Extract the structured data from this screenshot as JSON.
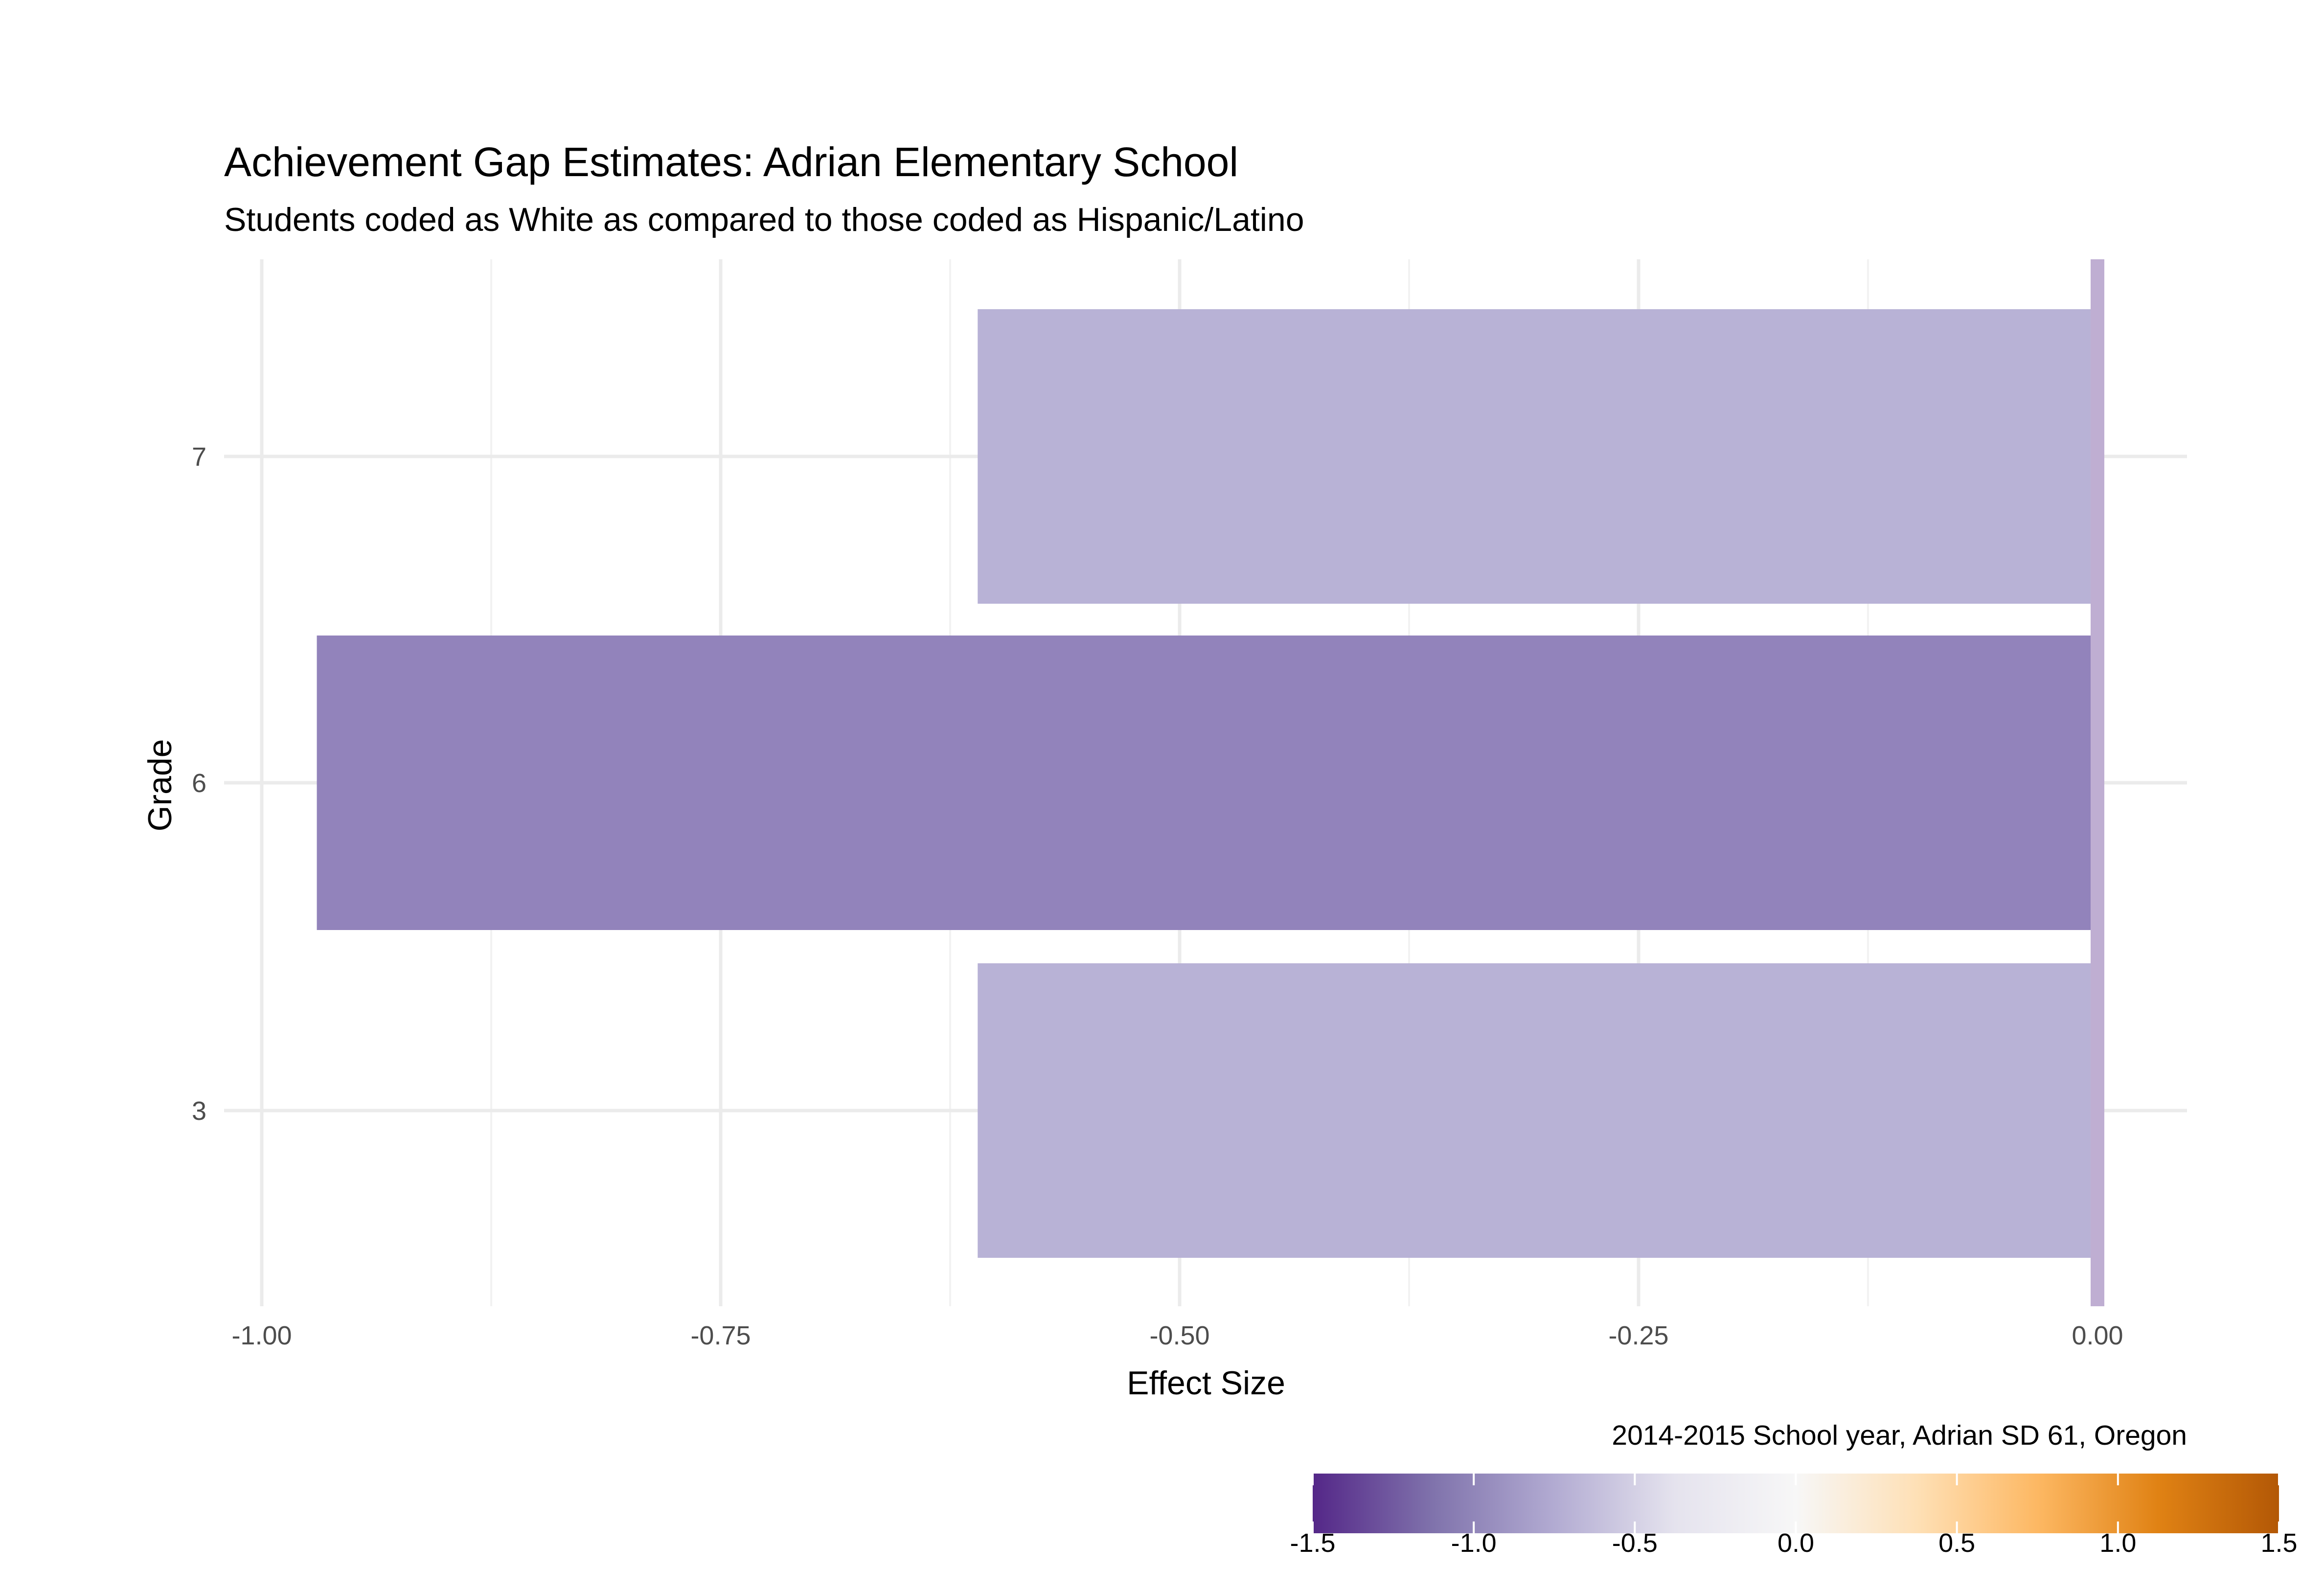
{
  "chart_data": {
    "type": "bar",
    "orientation": "horizontal",
    "title": "Achievement Gap Estimates: Adrian Elementary School",
    "subtitle": "Students coded as White as compared to those coded as Hispanic/Latino",
    "xlabel": "Effect Size",
    "ylabel": "Grade",
    "caption": "2014-2015 School year, Adrian SD 61, Oregon",
    "categories": [
      "3",
      "6",
      "7"
    ],
    "values": [
      -0.61,
      -0.97,
      -0.61
    ],
    "xlim": [
      -1.02,
      0.05
    ],
    "x_ticks": [
      "-1.00",
      "-0.75",
      "-0.50",
      "-0.25",
      "0.00"
    ],
    "x_tick_values": [
      -1.0,
      -0.75,
      -0.5,
      -0.25,
      0.0
    ],
    "zero_line_color": "#bfaed2",
    "grid": true,
    "legend": {
      "type": "colorbar",
      "placement": "bottom-right",
      "range": [
        -1.5,
        1.5
      ],
      "labels": [
        "-1.5",
        "-1.0",
        "-0.5",
        "0.0",
        "0.5",
        "1.0",
        "1.5"
      ],
      "label_values": [
        -1.5,
        -1.0,
        -0.5,
        0.0,
        0.5,
        1.0,
        1.5
      ],
      "colors": [
        "#542788",
        "#8073ac",
        "#b2abd2",
        "#e5e3ee",
        "#f7f7f7",
        "#fee0b6",
        "#fdb863",
        "#e08214",
        "#b35806"
      ]
    },
    "bar_colors": [
      "#b8b2d6",
      "#9283bb",
      "#b8b2d6"
    ]
  }
}
